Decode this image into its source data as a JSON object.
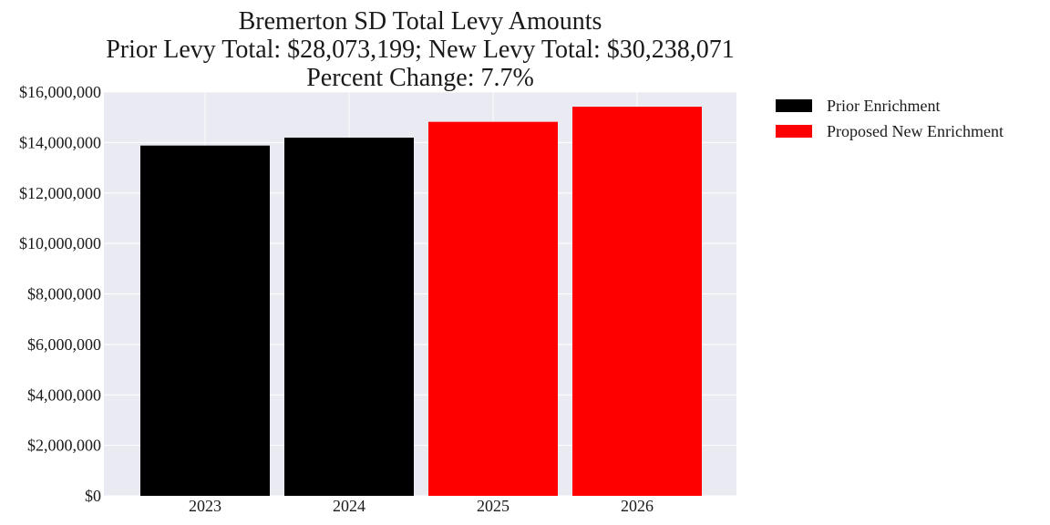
{
  "chart_data": {
    "type": "bar",
    "title_lines": [
      "Bremerton SD Total Levy Amounts",
      "Prior Levy Total:  $28,073,199; New Levy Total: $30,238,071",
      "Percent Change: 7.7%"
    ],
    "xlabel": "",
    "ylabel": "",
    "categories": [
      "2023",
      "2024",
      "2025",
      "2026"
    ],
    "values": [
      13880000,
      14193199,
      14820000,
      15418071
    ],
    "bar_series": [
      "Prior Enrichment",
      "Prior Enrichment",
      "Proposed New Enrichment",
      "Proposed New Enrichment"
    ],
    "ylim": [
      0,
      16000000
    ],
    "yticks": [
      0,
      2000000,
      4000000,
      6000000,
      8000000,
      10000000,
      12000000,
      14000000,
      16000000
    ],
    "ytick_labels": [
      "$0",
      "$2,000,000",
      "$4,000,000",
      "$6,000,000",
      "$8,000,000",
      "$10,000,000",
      "$12,000,000",
      "$14,000,000",
      "$16,000,000"
    ],
    "legend": {
      "placement": "outside-upper-right",
      "entries": [
        {
          "label": "Prior Enrichment",
          "color": "#000000"
        },
        {
          "label": "Proposed New Enrichment",
          "color": "#ff0000"
        }
      ]
    },
    "grid": true,
    "colors": {
      "plot_background": "#eaeaf2",
      "grid": "#ffffff"
    }
  }
}
